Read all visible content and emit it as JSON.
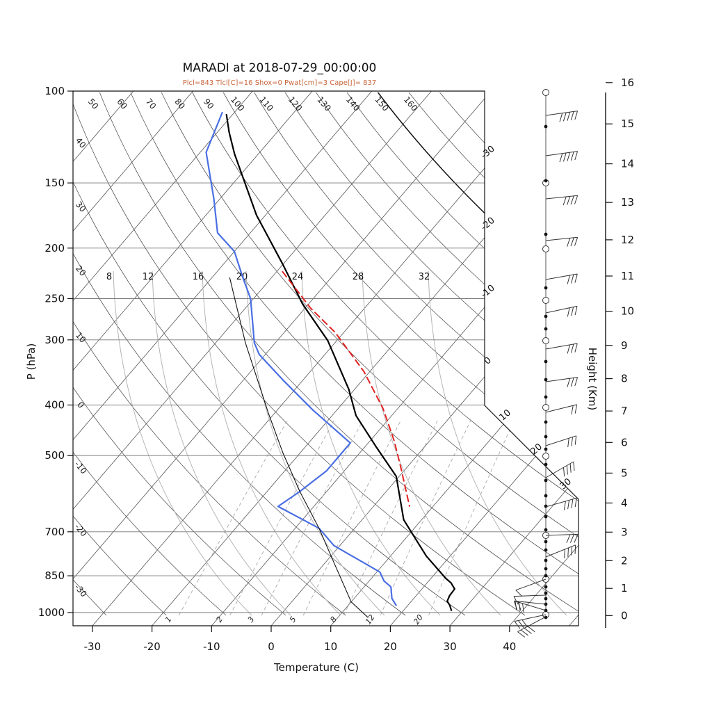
{
  "title": "MARADI at 2018-07-29_00:00:00",
  "subtitle": "Plcl=843 Tlcl[C]=16 Shox=0 Pwat[cm]=3 Cape[J]= 837",
  "axes": {
    "pressure_label": "P (hPa)",
    "pressure_ticks": [
      100,
      150,
      200,
      250,
      300,
      400,
      500,
      700,
      850,
      1000
    ],
    "temp_label": "Temperature (C)",
    "temp_ticks": [
      -30,
      -20,
      -10,
      0,
      10,
      20,
      30,
      40
    ],
    "height_label": "Height (Km)",
    "height_ticks": [
      16,
      15,
      14,
      13,
      12,
      11,
      10,
      9,
      8,
      7,
      6,
      5,
      4,
      3,
      2,
      1,
      0
    ]
  },
  "grid": {
    "isotherm_family": {
      "min": -110,
      "max": 50,
      "step": 10
    },
    "dry_adiabat_family": {
      "min": -30,
      "max": 160,
      "step": 10,
      "dark_member": 140
    },
    "dry_adiabat_top_labels": [
      50,
      60,
      70,
      80,
      90,
      100,
      110,
      120,
      130,
      140,
      150,
      160
    ],
    "dry_adiabat_left_labels": [
      40,
      30,
      20,
      10,
      0,
      -10,
      -20,
      -30
    ],
    "isotherm_right_labels": [
      -30,
      -20,
      -10,
      0
    ],
    "isotherm_diag_labels": [
      10,
      20,
      30
    ],
    "moist_adiabat_labels": [
      8,
      12,
      16,
      20,
      24,
      28,
      32
    ],
    "mixing_ratio_labels": [
      1,
      2,
      3,
      5,
      8,
      12,
      20
    ]
  },
  "colors": {
    "temperature": "#000000",
    "dewpoint": "#4a6fe3",
    "parcel": "#e32222",
    "subtitle": "#c8663c",
    "grid_dark": "#555555",
    "grid_light": "#b5b5b5",
    "isobar": "#777777"
  },
  "chart_data": {
    "type": "skewt-sounding",
    "station": "MARADI",
    "time": "2018-07-29_00:00:00",
    "parameters": {
      "Plcl": 843,
      "Tlcl_C": 16,
      "Shox": 0,
      "Pwat_cm": 3,
      "Cape_J": 837
    },
    "pressure_range_hpa": [
      100,
      1050
    ],
    "temperature_range_c": [
      -35,
      52
    ],
    "series": [
      {
        "name": "temperature",
        "units": "hPa,C",
        "points": [
          [
            111,
            -81
          ],
          [
            120,
            -78
          ],
          [
            132,
            -74
          ],
          [
            173,
            -61.5
          ],
          [
            215,
            -50
          ],
          [
            256,
            -41
          ],
          [
            301,
            -31.5
          ],
          [
            373,
            -21
          ],
          [
            419,
            -16
          ],
          [
            482,
            -8
          ],
          [
            548,
            -0.5
          ],
          [
            664,
            7
          ],
          [
            779,
            16
          ],
          [
            860,
            22.5
          ],
          [
            877,
            24
          ],
          [
            901,
            25.5
          ],
          [
            928,
            25.6
          ],
          [
            951,
            26
          ],
          [
            968,
            27
          ],
          [
            990,
            28
          ]
        ]
      },
      {
        "name": "dewpoint",
        "units": "hPa,C",
        "points": [
          [
            110,
            -82
          ],
          [
            131,
            -79
          ],
          [
            161,
            -71
          ],
          [
            187,
            -65.5
          ],
          [
            203,
            -60
          ],
          [
            227,
            -55
          ],
          [
            250,
            -50.5
          ],
          [
            304,
            -43.5
          ],
          [
            320,
            -41
          ],
          [
            360,
            -33
          ],
          [
            409,
            -24
          ],
          [
            473,
            -13
          ],
          [
            535,
            -13
          ],
          [
            586,
            -14.5
          ],
          [
            626,
            -16
          ],
          [
            689,
            -6
          ],
          [
            744,
            -1
          ],
          [
            836,
            10.5
          ],
          [
            870,
            12.5
          ],
          [
            893,
            14.5
          ],
          [
            939,
            16.3
          ],
          [
            968,
            18
          ]
        ]
      },
      {
        "name": "parcel",
        "units": "hPa,C",
        "points": [
          [
            222,
            -49
          ],
          [
            261,
            -39
          ],
          [
            290,
            -31.5
          ],
          [
            345,
            -21
          ],
          [
            406,
            -12.5
          ],
          [
            468,
            -6
          ],
          [
            527,
            -1
          ],
          [
            625,
            6
          ]
        ]
      },
      {
        "name": "secondary-profile",
        "units": "hPa,C",
        "points": [
          [
            228,
            -57
          ],
          [
            304,
            -45
          ],
          [
            415,
            -31
          ],
          [
            493,
            -23
          ],
          [
            586,
            -14.5
          ],
          [
            689,
            -6
          ],
          [
            811,
            2
          ],
          [
            954,
            10
          ],
          [
            1021,
            15
          ]
        ]
      }
    ],
    "wind_barbs": [
      {
        "y": 166,
        "angle": -8,
        "feathers": 5
      },
      {
        "y": 224,
        "angle": -8,
        "feathers": 5
      },
      {
        "y": 286,
        "angle": -6,
        "feathers": 4
      },
      {
        "y": 346,
        "angle": -6,
        "feathers": 3
      },
      {
        "y": 402,
        "angle": -10,
        "feathers": 3
      },
      {
        "y": 450,
        "angle": -12,
        "feathers": 3
      },
      {
        "y": 502,
        "angle": -10,
        "feathers": 3
      },
      {
        "y": 549,
        "angle": -8,
        "feathers": 3
      },
      {
        "y": 593,
        "angle": -14,
        "feathers": 2
      },
      {
        "y": 641,
        "angle": -18,
        "feathers": 3
      },
      {
        "y": 687,
        "angle": -30,
        "feathers": 4
      },
      {
        "y": 729,
        "angle": -16,
        "feathers": 4
      },
      {
        "y": 770,
        "angle": -2,
        "feathers": 3
      },
      {
        "y": 801,
        "angle": -22,
        "feathers": 4
      },
      {
        "y": 833,
        "angle": 160,
        "feathers": 1
      },
      {
        "y": 856,
        "angle": 178,
        "feathers": 1
      },
      {
        "y": 869,
        "angle": 186,
        "feathers": 2
      },
      {
        "y": 878,
        "angle": 197,
        "feathers": 3
      },
      {
        "y": 884,
        "angle": 168,
        "feathers": 3
      },
      {
        "y": 887,
        "angle": 152,
        "feathers": 4
      }
    ],
    "staff_dots_y": [
      182,
      260,
      337,
      414,
      455,
      473,
      520,
      546,
      571,
      607,
      628,
      646,
      668,
      691,
      713,
      728,
      743,
      762,
      779,
      791,
      806,
      818,
      828,
      844,
      853,
      861,
      869,
      878,
      888
    ],
    "staff_circles_y": [
      133,
      263,
      358,
      432,
      490,
      586,
      656,
      770,
      833,
      884
    ]
  }
}
